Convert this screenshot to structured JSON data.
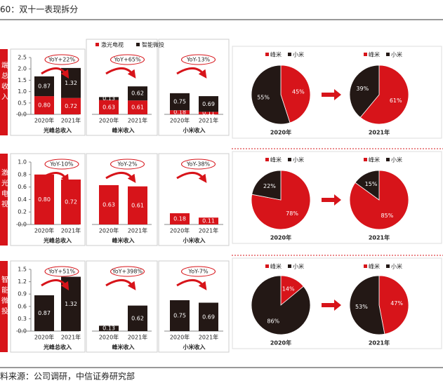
{
  "title": "60：双十一表现拆分",
  "source": "料来源：公司调研，中信证券研究部",
  "chart_data": [
    {
      "type": "bar",
      "section": "端总收入",
      "stacked": true,
      "legend": [
        {
          "name": "激光电视",
          "color": "#d7141a"
        },
        {
          "name": "智能微投",
          "color": "#231815"
        }
      ],
      "ylim": [
        0,
        2.5
      ],
      "yticks": [
        {
          "value": 0,
          "label": "0.0"
        },
        0.5,
        {
          "value": 1,
          "label": "1.0"
        },
        1.5,
        {
          "value": 2,
          "label": "2.0"
        },
        2.5
      ],
      "groups": [
        {
          "name": "光峰总收入",
          "categories": [
            "2020年",
            "2021年"
          ],
          "annotation": "YoY+22%",
          "series": [
            {
              "values": [
                0.8,
                0.72
              ],
              "value_labels": [
                "0.80",
                "0.72"
              ]
            },
            {
              "values": [
                0.87,
                1.32
              ],
              "value_labels": [
                "0.87",
                "1.32"
              ]
            }
          ]
        },
        {
          "name": "峰米收入",
          "categories": [
            "2020年",
            "2021年"
          ],
          "annotation": "YoY+65%",
          "series": [
            {
              "values": [
                0.63,
                0.61
              ],
              "value_labels": [
                "0.63",
                "0.61"
              ]
            },
            {
              "values": [
                0.13,
                0.62
              ],
              "value_labels": [
                "0.13",
                "0.62"
              ]
            }
          ]
        },
        {
          "name": "小米收入",
          "categories": [
            "2020年",
            "2021年"
          ],
          "annotation": "YoY-13%",
          "series": [
            {
              "values": [
                0.18,
                0.11
              ],
              "value_labels": [
                "0.18",
                "0.11"
              ]
            },
            {
              "values": [
                0.75,
                0.69
              ],
              "value_labels": [
                "0.75",
                "0.69"
              ]
            }
          ]
        }
      ]
    },
    {
      "type": "pie",
      "categories": [
        "峰米",
        "小米"
      ],
      "colors": [
        "#d7141a",
        "#231815"
      ],
      "pies": [
        {
          "label": "2020年",
          "values": [
            45,
            55
          ],
          "value_labels": [
            "45%",
            "55%"
          ]
        },
        {
          "label": "2021年",
          "values": [
            61,
            39
          ],
          "value_labels": [
            "61%",
            "39%"
          ]
        }
      ]
    },
    {
      "type": "bar",
      "section": "激光电视",
      "color": "#d7141a",
      "ylim": [
        0,
        1
      ],
      "yticks": [
        {
          "value": 0,
          "label": "0.0"
        },
        0.2,
        0.4,
        0.6,
        0.8,
        {
          "value": 1,
          "label": "1.0"
        }
      ],
      "groups": [
        {
          "name": "光峰总收入",
          "categories": [
            "2020年",
            "2021年"
          ],
          "annotation": "YoY-10%",
          "series": [
            {
              "values": [
                0.8,
                0.72
              ],
              "value_labels": [
                "0.80",
                "0.72"
              ]
            }
          ]
        },
        {
          "name": "峰米收入",
          "categories": [
            "2020年",
            "2021年"
          ],
          "annotation": "YoY-2%",
          "series": [
            {
              "values": [
                0.63,
                0.61
              ],
              "value_labels": [
                "0.63",
                "0.61"
              ]
            }
          ]
        },
        {
          "name": "小米收入",
          "categories": [
            "2020年",
            "2021年"
          ],
          "annotation": "YoY-38%",
          "series": [
            {
              "values": [
                0.18,
                0.11
              ],
              "value_labels": [
                "0.18",
                "0.11"
              ]
            }
          ]
        }
      ]
    },
    {
      "type": "pie",
      "categories": [
        "峰米",
        "小米"
      ],
      "colors": [
        "#d7141a",
        "#231815"
      ],
      "pies": [
        {
          "label": "2020年",
          "values": [
            78,
            22
          ],
          "value_labels": [
            "78%",
            "22%"
          ]
        },
        {
          "label": "2021年",
          "values": [
            85,
            15
          ],
          "value_labels": [
            "85%",
            "15%"
          ]
        }
      ]
    },
    {
      "type": "bar",
      "section": "智能微投",
      "color": "#231815",
      "ylim": [
        0,
        1.5
      ],
      "yticks": [
        {
          "value": 0,
          "label": "0.0"
        },
        0.3,
        0.6,
        0.9,
        1.2,
        1.5
      ],
      "groups": [
        {
          "name": "光峰总收入",
          "categories": [
            "2020年",
            "2021年"
          ],
          "annotation": "YoY+51%",
          "series": [
            {
              "values": [
                0.87,
                1.32
              ],
              "value_labels": [
                "0.87",
                "1.32"
              ]
            }
          ]
        },
        {
          "name": "峰米收入",
          "categories": [
            "2020年",
            "2021年"
          ],
          "annotation": "YoY+398%",
          "series": [
            {
              "values": [
                0.13,
                0.62
              ],
              "value_labels": [
                "0.13",
                "0.62"
              ]
            }
          ]
        },
        {
          "name": "小米收入",
          "categories": [
            "2020年",
            "2021年"
          ],
          "annotation": "YoY-7%",
          "series": [
            {
              "values": [
                0.75,
                0.69
              ],
              "value_labels": [
                "0.75",
                "0.69"
              ]
            }
          ]
        }
      ]
    },
    {
      "type": "pie",
      "categories": [
        "峰米",
        "小米"
      ],
      "colors": [
        "#d7141a",
        "#231815"
      ],
      "pies": [
        {
          "label": "2020年",
          "values": [
            14,
            86
          ],
          "value_labels": [
            "14%",
            "86%"
          ]
        },
        {
          "label": "2021年",
          "values": [
            47,
            53
          ],
          "value_labels": [
            "47%",
            "53%"
          ]
        }
      ]
    }
  ]
}
